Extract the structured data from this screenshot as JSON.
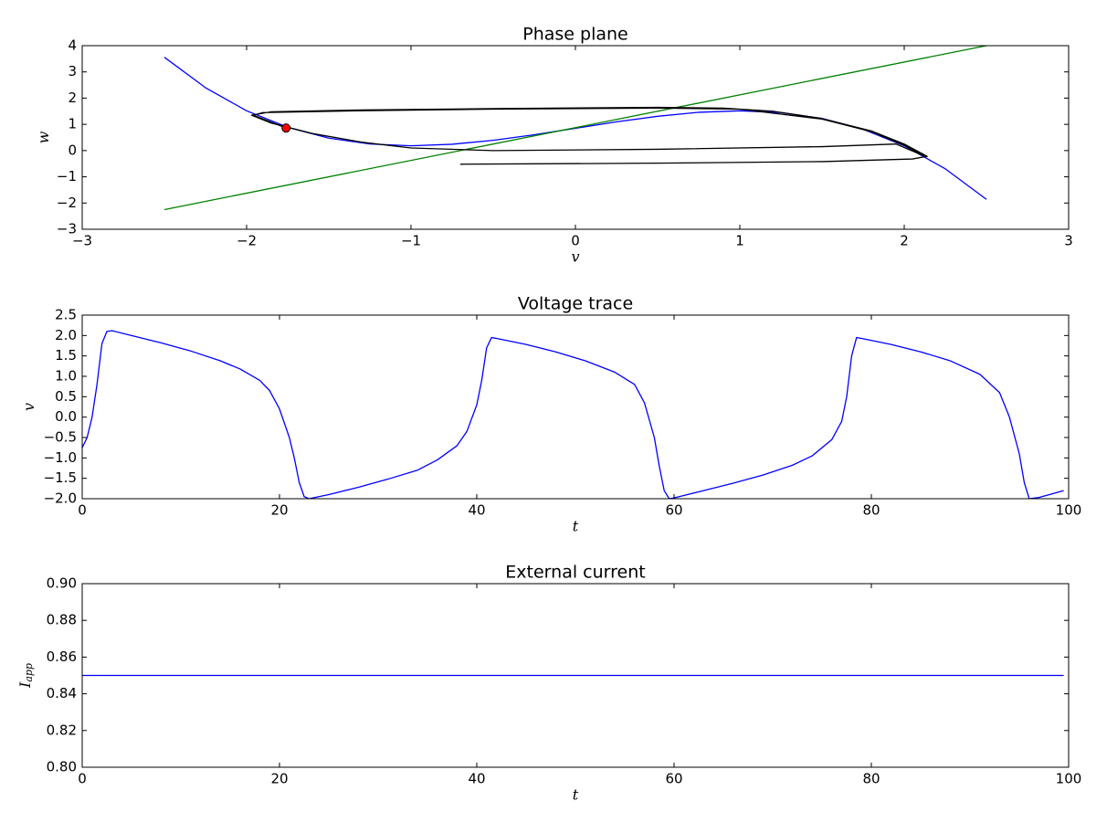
{
  "chart_data": [
    {
      "type": "line",
      "title": "Phase plane",
      "xlabel": "v",
      "ylabel": "w",
      "xlim": [
        -3,
        3
      ],
      "ylim": [
        -3,
        4
      ],
      "xticks": [
        {
          "value": -3,
          "label": "−3"
        },
        {
          "value": -2,
          "label": "−2"
        },
        {
          "value": -1,
          "label": "−1"
        },
        0,
        1,
        2,
        3
      ],
      "yticks": [
        {
          "value": -3,
          "label": "−3"
        },
        {
          "value": -2,
          "label": "−2"
        },
        {
          "value": -1,
          "label": "−1"
        },
        0,
        1,
        2,
        3,
        4
      ],
      "grid": false,
      "series": [
        {
          "color": "#0000ff",
          "x": [
            -2.5,
            -2.25,
            -2,
            -1.75,
            -1.5,
            -1.25,
            -1,
            -0.75,
            -0.5,
            -0.25,
            0,
            0.25,
            0.5,
            0.75,
            1,
            1.25,
            1.5,
            1.75,
            2,
            2.25,
            2.5
          ],
          "values": [
            3.558,
            2.397,
            1.517,
            0.887,
            0.475,
            0.251,
            0.183,
            0.241,
            0.392,
            0.605,
            0.85,
            1.095,
            1.308,
            1.459,
            1.517,
            1.449,
            1.225,
            0.813,
            0.183,
            -0.697,
            -1.858
          ]
        },
        {
          "color": "#008000",
          "x": [
            -2.5,
            2.5
          ],
          "values": [
            -2.25,
            4.0
          ]
        },
        {
          "color": "#000000",
          "x": [
            -0.7,
            0.5,
            1.5,
            2.05,
            2.14,
            2.0,
            1.8,
            1.5,
            1.2,
            0.9,
            0.5,
            -0.5,
            -1.3,
            -1.85,
            -1.97,
            -1.85,
            -1.6,
            -1.3,
            -1,
            -0.5,
            0.5,
            1.5,
            1.95,
            2.1,
            2.12,
            2.0,
            1.8,
            1.5,
            1.0,
            0.5,
            -0.5,
            -1.3,
            -1.9,
            -1.96,
            -1.76
          ],
          "values": [
            -0.52,
            -0.48,
            -0.42,
            -0.32,
            -0.22,
            0.25,
            0.75,
            1.22,
            1.5,
            1.62,
            1.65,
            1.6,
            1.55,
            1.48,
            1.35,
            1.05,
            0.65,
            0.32,
            0.1,
            0.0,
            0.05,
            0.15,
            0.25,
            -0.15,
            -0.2,
            0.2,
            0.72,
            1.2,
            1.58,
            1.62,
            1.58,
            1.52,
            1.45,
            1.35,
            0.86
          ]
        },
        {
          "color": "#ff0000",
          "marker": "o",
          "x": [
            -1.76
          ],
          "values": [
            0.86
          ]
        }
      ]
    },
    {
      "type": "line",
      "title": "Voltage trace",
      "xlabel": "t",
      "ylabel": "v",
      "xlim": [
        0,
        100
      ],
      "ylim": [
        -2,
        2.5
      ],
      "xticks": [
        0,
        20,
        40,
        60,
        80,
        100
      ],
      "yticks": [
        {
          "value": -2,
          "label": "−2.0"
        },
        {
          "value": -1.5,
          "label": "−1.5"
        },
        {
          "value": -1,
          "label": "−1.0"
        },
        {
          "value": -0.5,
          "label": "−0.5"
        },
        {
          "value": 0,
          "label": "0.0"
        },
        0.5,
        {
          "value": 1,
          "label": "1.0"
        },
        1.5,
        {
          "value": 2,
          "label": "2.0"
        },
        2.5
      ],
      "grid": false,
      "series": [
        {
          "color": "#0000ff",
          "x": [
            0,
            0.5,
            1,
            1.5,
            2,
            2.5,
            3,
            5,
            8,
            11,
            14,
            16,
            18,
            19,
            20,
            21,
            21.5,
            22,
            22.5,
            23,
            25,
            28,
            31,
            34,
            36,
            38,
            39,
            40,
            40.5,
            41,
            41.5,
            42,
            45,
            48,
            51,
            54,
            56,
            57,
            58,
            58.5,
            59,
            59.5,
            60,
            63,
            66,
            69,
            72,
            74,
            76,
            77,
            77.5,
            78,
            78.5,
            79,
            82,
            85,
            88,
            91,
            93,
            94,
            95,
            95.5,
            96,
            97,
            99.5
          ],
          "values": [
            -0.75,
            -0.5,
            0.0,
            0.8,
            1.8,
            2.1,
            2.12,
            2.0,
            1.82,
            1.62,
            1.38,
            1.18,
            0.9,
            0.65,
            0.2,
            -0.5,
            -1.0,
            -1.6,
            -1.95,
            -2.0,
            -1.9,
            -1.72,
            -1.52,
            -1.3,
            -1.05,
            -0.7,
            -0.35,
            0.3,
            0.9,
            1.7,
            1.95,
            1.93,
            1.78,
            1.6,
            1.38,
            1.1,
            0.8,
            0.35,
            -0.5,
            -1.2,
            -1.8,
            -2.0,
            -1.98,
            -1.8,
            -1.62,
            -1.42,
            -1.18,
            -0.95,
            -0.55,
            -0.1,
            0.5,
            1.5,
            1.95,
            1.93,
            1.78,
            1.6,
            1.38,
            1.05,
            0.6,
            0.0,
            -0.9,
            -1.6,
            -2.0,
            -1.97,
            -1.8
          ]
        }
      ]
    },
    {
      "type": "line",
      "title": "External current",
      "xlabel": "t",
      "ylabel": "I",
      "ylabel_subscript": "app",
      "xlim": [
        0,
        100
      ],
      "ylim": [
        0.8,
        0.9
      ],
      "xticks": [
        0,
        20,
        40,
        60,
        80,
        100
      ],
      "yticks": [
        {
          "value": 0.8,
          "label": "0.80"
        },
        0.82,
        0.84,
        0.86,
        0.88,
        {
          "value": 0.9,
          "label": "0.90"
        }
      ],
      "grid": false,
      "series": [
        {
          "color": "#0000ff",
          "x": [
            0,
            99.5
          ],
          "values": [
            0.85,
            0.85
          ]
        }
      ]
    }
  ]
}
